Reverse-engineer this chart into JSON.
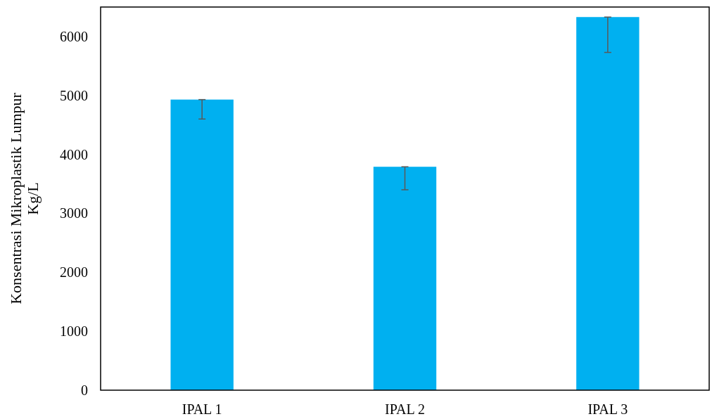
{
  "chart_data": {
    "type": "bar",
    "ylabel": "Konsentrasi Mikroplastik Lumpur\nKg/L",
    "categories": [
      "IPAL 1",
      "IPAL 2",
      "IPAL 3"
    ],
    "values": [
      4930,
      3790,
      6330
    ],
    "errors": [
      [
        4600,
        4930
      ],
      [
        3400,
        3790
      ],
      [
        5730,
        6330
      ]
    ],
    "color": "#00b0f0",
    "ylim": [
      0,
      6500
    ],
    "yticks": [
      0,
      1000,
      2000,
      3000,
      4000,
      5000,
      6000
    ],
    "grid": false
  }
}
